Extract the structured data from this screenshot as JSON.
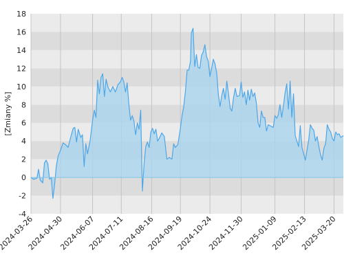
{
  "chart_data": {
    "type": "area",
    "title": "",
    "xlabel": "",
    "ylabel": "[Zmiany %]",
    "ylim": [
      -4,
      18
    ],
    "y_ticks": [
      -4,
      -2,
      0,
      2,
      4,
      6,
      8,
      10,
      12,
      14,
      16,
      18
    ],
    "x_tick_labels": [
      "2024-03-26",
      "2024-04-30",
      "2024-06-07",
      "2024-07-11",
      "2024-08-16",
      "2024-09-19",
      "2024-10-24",
      "2024-11-30",
      "2025-01-09",
      "2025-02-13",
      "2025-03-20"
    ],
    "xlim": [
      "2024-03-26",
      "2025-03-31"
    ],
    "grid": true,
    "band_colors": [
      "#ebebeb",
      "#dcdcdc"
    ],
    "series": [
      {
        "color": "#4da6e8",
        "fill": "#a9d5ee",
        "points": [
          [
            "2024-03-26",
            0
          ],
          [
            "2024-03-29",
            -0.2
          ],
          [
            "2024-04-02",
            -0.1
          ],
          [
            "2024-04-04",
            0.9
          ],
          [
            "2024-04-06",
            -0.3
          ],
          [
            "2024-04-09",
            -0.6
          ],
          [
            "2024-04-11",
            1.6
          ],
          [
            "2024-04-13",
            1.9
          ],
          [
            "2024-04-15",
            1.5
          ],
          [
            "2024-04-17",
            -0.2
          ],
          [
            "2024-04-19",
            0.0
          ],
          [
            "2024-04-21",
            -2.3
          ],
          [
            "2024-04-23",
            -0.8
          ],
          [
            "2024-04-25",
            1.2
          ],
          [
            "2024-04-27",
            2.3
          ],
          [
            "2024-04-30",
            3.0
          ],
          [
            "2024-05-03",
            3.8
          ],
          [
            "2024-05-06",
            3.6
          ],
          [
            "2024-05-09",
            3.3
          ],
          [
            "2024-05-12",
            4.4
          ],
          [
            "2024-05-15",
            5.4
          ],
          [
            "2024-05-17",
            5.5
          ],
          [
            "2024-05-19",
            3.9
          ],
          [
            "2024-05-21",
            5.3
          ],
          [
            "2024-05-24",
            4.4
          ],
          [
            "2024-05-26",
            4.7
          ],
          [
            "2024-05-28",
            1.2
          ],
          [
            "2024-05-30",
            3.7
          ],
          [
            "2024-06-01",
            2.6
          ],
          [
            "2024-06-04",
            4.0
          ],
          [
            "2024-06-07",
            6.3
          ],
          [
            "2024-06-09",
            7.4
          ],
          [
            "2024-06-11",
            6.6
          ],
          [
            "2024-06-13",
            10.7
          ],
          [
            "2024-06-15",
            9.2
          ],
          [
            "2024-06-17",
            11.0
          ],
          [
            "2024-06-19",
            11.4
          ],
          [
            "2024-06-21",
            8.9
          ],
          [
            "2024-06-23",
            10.8
          ],
          [
            "2024-06-25",
            10.0
          ],
          [
            "2024-06-28",
            9.4
          ],
          [
            "2024-07-01",
            10.0
          ],
          [
            "2024-07-04",
            9.4
          ],
          [
            "2024-07-07",
            10.2
          ],
          [
            "2024-07-10",
            10.5
          ],
          [
            "2024-07-12",
            11.0
          ],
          [
            "2024-07-14",
            10.5
          ],
          [
            "2024-07-16",
            9.4
          ],
          [
            "2024-07-18",
            10.4
          ],
          [
            "2024-07-20",
            8.0
          ],
          [
            "2024-07-22",
            6.3
          ],
          [
            "2024-07-24",
            6.8
          ],
          [
            "2024-07-26",
            6.2
          ],
          [
            "2024-07-28",
            4.7
          ],
          [
            "2024-07-30",
            6.0
          ],
          [
            "2024-08-01",
            5.3
          ],
          [
            "2024-08-03",
            7.4
          ],
          [
            "2024-08-05",
            -1.5
          ],
          [
            "2024-08-07",
            1.5
          ],
          [
            "2024-08-09",
            3.4
          ],
          [
            "2024-08-11",
            3.9
          ],
          [
            "2024-08-13",
            3.3
          ],
          [
            "2024-08-15",
            5.0
          ],
          [
            "2024-08-17",
            5.4
          ],
          [
            "2024-08-19",
            4.8
          ],
          [
            "2024-08-21",
            5.3
          ],
          [
            "2024-08-23",
            4.0
          ],
          [
            "2024-08-25",
            4.3
          ],
          [
            "2024-08-28",
            4.9
          ],
          [
            "2024-08-31",
            4.5
          ],
          [
            "2024-09-03",
            2.0
          ],
          [
            "2024-09-06",
            2.2
          ],
          [
            "2024-09-09",
            2.0
          ],
          [
            "2024-09-11",
            3.7
          ],
          [
            "2024-09-13",
            3.3
          ],
          [
            "2024-09-16",
            3.6
          ],
          [
            "2024-09-19",
            5.4
          ],
          [
            "2024-09-21",
            6.8
          ],
          [
            "2024-09-23",
            7.8
          ],
          [
            "2024-09-25",
            9.5
          ],
          [
            "2024-09-27",
            11.8
          ],
          [
            "2024-09-29",
            11.8
          ],
          [
            "2024-10-01",
            12.8
          ],
          [
            "2024-10-02",
            15.9
          ],
          [
            "2024-10-04",
            16.4
          ],
          [
            "2024-10-06",
            12.2
          ],
          [
            "2024-10-08",
            13.5
          ],
          [
            "2024-10-10",
            12.1
          ],
          [
            "2024-10-12",
            12.0
          ],
          [
            "2024-10-14",
            13.4
          ],
          [
            "2024-10-16",
            13.8
          ],
          [
            "2024-10-18",
            14.6
          ],
          [
            "2024-10-20",
            13.3
          ],
          [
            "2024-10-22",
            12.8
          ],
          [
            "2024-10-24",
            11.1
          ],
          [
            "2024-10-26",
            12.0
          ],
          [
            "2024-10-28",
            13.0
          ],
          [
            "2024-10-30",
            12.5
          ],
          [
            "2024-11-01",
            11.5
          ],
          [
            "2024-11-03",
            9.1
          ],
          [
            "2024-11-05",
            7.8
          ],
          [
            "2024-11-07",
            9.0
          ],
          [
            "2024-11-09",
            9.8
          ],
          [
            "2024-11-11",
            8.6
          ],
          [
            "2024-11-13",
            10.6
          ],
          [
            "2024-11-15",
            9.2
          ],
          [
            "2024-11-17",
            7.6
          ],
          [
            "2024-11-19",
            7.3
          ],
          [
            "2024-11-21",
            8.8
          ],
          [
            "2024-11-23",
            9.8
          ],
          [
            "2024-11-25",
            8.9
          ],
          [
            "2024-11-28",
            9.0
          ],
          [
            "2024-11-30",
            10.5
          ],
          [
            "2024-12-02",
            8.8
          ],
          [
            "2024-12-04",
            9.4
          ],
          [
            "2024-12-06",
            8.0
          ],
          [
            "2024-12-08",
            9.6
          ],
          [
            "2024-12-10",
            8.5
          ],
          [
            "2024-12-12",
            9.7
          ],
          [
            "2024-12-14",
            8.9
          ],
          [
            "2024-12-16",
            9.3
          ],
          [
            "2024-12-18",
            8.2
          ],
          [
            "2024-12-20",
            6.0
          ],
          [
            "2024-12-22",
            5.5
          ],
          [
            "2024-12-24",
            7.3
          ],
          [
            "2024-12-26",
            6.6
          ],
          [
            "2024-12-28",
            6.6
          ],
          [
            "2024-12-30",
            5.1
          ],
          [
            "2025-01-01",
            5.8
          ],
          [
            "2025-01-03",
            5.7
          ],
          [
            "2025-01-05",
            5.6
          ],
          [
            "2025-01-07",
            5.5
          ],
          [
            "2025-01-09",
            6.8
          ],
          [
            "2025-01-11",
            6.5
          ],
          [
            "2025-01-13",
            6.9
          ],
          [
            "2025-01-15",
            8.0
          ],
          [
            "2025-01-17",
            6.6
          ],
          [
            "2025-01-19",
            7.8
          ],
          [
            "2025-01-21",
            9.3
          ],
          [
            "2025-01-23",
            10.3
          ],
          [
            "2025-01-25",
            7.5
          ],
          [
            "2025-01-27",
            10.6
          ],
          [
            "2025-01-29",
            6.6
          ],
          [
            "2025-01-31",
            9.2
          ],
          [
            "2025-02-02",
            4.6
          ],
          [
            "2025-02-04",
            4.0
          ],
          [
            "2025-02-06",
            3.4
          ],
          [
            "2025-02-08",
            5.7
          ],
          [
            "2025-02-10",
            3.3
          ],
          [
            "2025-02-12",
            2.6
          ],
          [
            "2025-02-14",
            1.9
          ],
          [
            "2025-02-16",
            3.0
          ],
          [
            "2025-02-18",
            4.1
          ],
          [
            "2025-02-20",
            5.8
          ],
          [
            "2025-02-22",
            5.4
          ],
          [
            "2025-02-24",
            5.2
          ],
          [
            "2025-02-26",
            4.0
          ],
          [
            "2025-02-28",
            4.5
          ],
          [
            "2025-03-02",
            3.4
          ],
          [
            "2025-03-04",
            2.5
          ],
          [
            "2025-03-06",
            1.9
          ],
          [
            "2025-03-08",
            3.2
          ],
          [
            "2025-03-10",
            3.7
          ],
          [
            "2025-03-12",
            5.8
          ],
          [
            "2025-03-14",
            5.3
          ],
          [
            "2025-03-16",
            5.0
          ],
          [
            "2025-03-18",
            4.3
          ],
          [
            "2025-03-20",
            4.0
          ],
          [
            "2025-03-22",
            5.0
          ],
          [
            "2025-03-24",
            4.7
          ],
          [
            "2025-03-26",
            4.8
          ],
          [
            "2025-03-28",
            4.4
          ],
          [
            "2025-03-31",
            4.6
          ]
        ]
      }
    ]
  }
}
